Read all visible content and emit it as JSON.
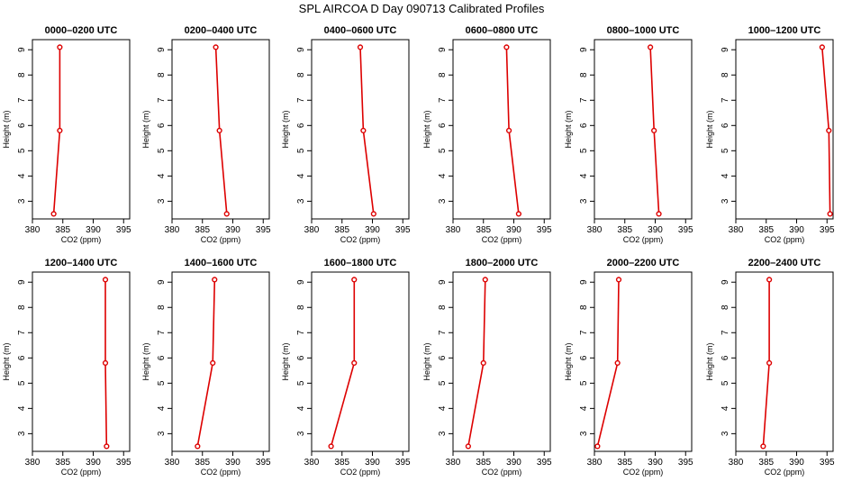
{
  "title": "SPL AIRCOA D  Day 090713  Calibrated Profiles",
  "colors": {
    "series": "#dd0000",
    "axis": "#000000",
    "background": "#ffffff"
  },
  "chart_data": {
    "type": "line",
    "layout": "2 rows x 6 columns of small multiples",
    "xlabel": "CO2 (ppm)",
    "ylabel": "Height (m)",
    "xticks": [
      380,
      385,
      390,
      395
    ],
    "yticks": [
      3,
      4,
      5,
      6,
      7,
      8,
      9
    ],
    "xlim": [
      380,
      396
    ],
    "ylim": [
      2.3,
      9.4
    ],
    "marker": "open circle",
    "grid": false,
    "legend": "none",
    "panels": [
      {
        "title": "0000–0200 UTC",
        "points": [
          {
            "x": 383.5,
            "y": 2.5
          },
          {
            "x": 384.5,
            "y": 5.8
          },
          {
            "x": 384.5,
            "y": 9.1
          }
        ]
      },
      {
        "title": "0200–0400 UTC",
        "points": [
          {
            "x": 389.0,
            "y": 2.5
          },
          {
            "x": 387.8,
            "y": 5.8
          },
          {
            "x": 387.2,
            "y": 9.1
          }
        ]
      },
      {
        "title": "0400–0600 UTC",
        "points": [
          {
            "x": 390.2,
            "y": 2.5
          },
          {
            "x": 388.5,
            "y": 5.8
          },
          {
            "x": 388.0,
            "y": 9.1
          }
        ]
      },
      {
        "title": "0600–0800 UTC",
        "points": [
          {
            "x": 390.8,
            "y": 2.5
          },
          {
            "x": 389.2,
            "y": 5.8
          },
          {
            "x": 388.8,
            "y": 9.1
          }
        ]
      },
      {
        "title": "0800–1000 UTC",
        "points": [
          {
            "x": 390.6,
            "y": 2.5
          },
          {
            "x": 389.8,
            "y": 5.8
          },
          {
            "x": 389.2,
            "y": 9.1
          }
        ]
      },
      {
        "title": "1000–1200 UTC",
        "points": [
          {
            "x": 395.5,
            "y": 2.5
          },
          {
            "x": 395.3,
            "y": 5.8
          },
          {
            "x": 394.2,
            "y": 9.1
          }
        ]
      },
      {
        "title": "1200–1400 UTC",
        "points": [
          {
            "x": 392.2,
            "y": 2.5
          },
          {
            "x": 392.0,
            "y": 5.8
          },
          {
            "x": 392.0,
            "y": 9.1
          }
        ]
      },
      {
        "title": "1400–1600 UTC",
        "points": [
          {
            "x": 384.2,
            "y": 2.5
          },
          {
            "x": 386.7,
            "y": 5.8
          },
          {
            "x": 387.0,
            "y": 9.1
          }
        ]
      },
      {
        "title": "1600–1800 UTC",
        "points": [
          {
            "x": 383.2,
            "y": 2.5
          },
          {
            "x": 387.0,
            "y": 5.8
          },
          {
            "x": 387.0,
            "y": 9.1
          }
        ]
      },
      {
        "title": "1800–2000 UTC",
        "points": [
          {
            "x": 382.5,
            "y": 2.5
          },
          {
            "x": 385.0,
            "y": 5.8
          },
          {
            "x": 385.3,
            "y": 9.1
          }
        ]
      },
      {
        "title": "2000–2200 UTC",
        "points": [
          {
            "x": 380.5,
            "y": 2.5
          },
          {
            "x": 383.8,
            "y": 5.8
          },
          {
            "x": 384.0,
            "y": 9.1
          }
        ]
      },
      {
        "title": "2200–2400 UTC",
        "points": [
          {
            "x": 384.5,
            "y": 2.5
          },
          {
            "x": 385.5,
            "y": 5.8
          },
          {
            "x": 385.5,
            "y": 9.1
          }
        ]
      }
    ]
  }
}
